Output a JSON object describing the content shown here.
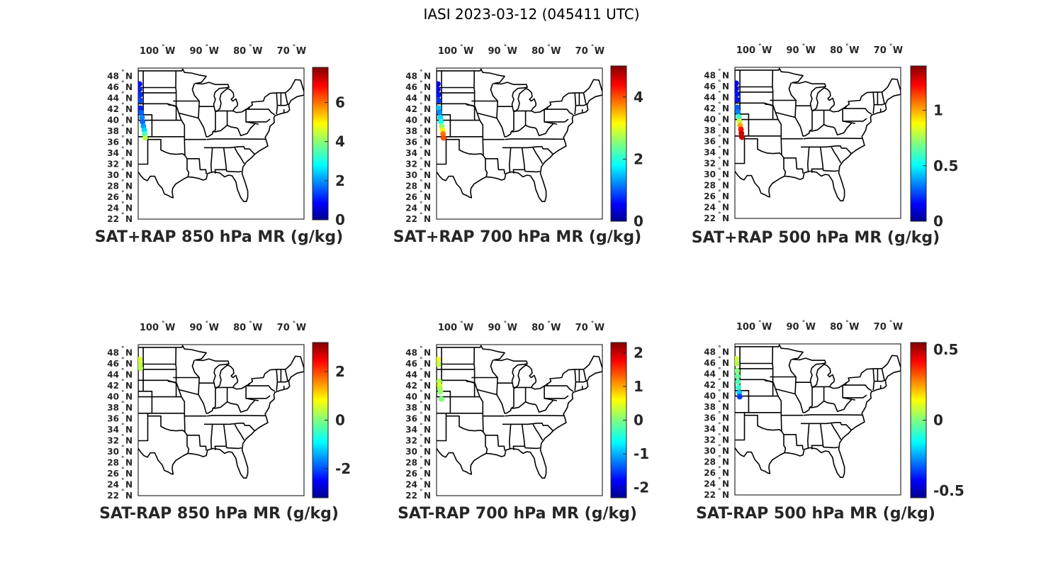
{
  "figure": {
    "title": "IASI 2023-03-12 (045411 UTC)"
  },
  "lon_labels": [
    {
      "deg": "100",
      "hemi": "W",
      "lon": -100
    },
    {
      "deg": "90",
      "hemi": "W",
      "lon": -90
    },
    {
      "deg": "80",
      "hemi": "W",
      "lon": -80
    },
    {
      "deg": "70",
      "hemi": "W",
      "lon": -70
    }
  ],
  "lat_labels": [
    {
      "deg": "48",
      "hemi": "N",
      "lat": 48
    },
    {
      "deg": "46",
      "hemi": "N",
      "lat": 46
    },
    {
      "deg": "44",
      "hemi": "N",
      "lat": 44
    },
    {
      "deg": "42",
      "hemi": "N",
      "lat": 42
    },
    {
      "deg": "40",
      "hemi": "N",
      "lat": 40
    },
    {
      "deg": "38",
      "hemi": "N",
      "lat": 38
    },
    {
      "deg": "36",
      "hemi": "N",
      "lat": 36
    },
    {
      "deg": "34",
      "hemi": "N",
      "lat": 34
    },
    {
      "deg": "32",
      "hemi": "N",
      "lat": 32
    },
    {
      "deg": "30",
      "hemi": "N",
      "lat": 30
    },
    {
      "deg": "28",
      "hemi": "N",
      "lat": 28
    },
    {
      "deg": "26",
      "hemi": "N",
      "lat": 26
    },
    {
      "deg": "24",
      "hemi": "N",
      "lat": 24
    },
    {
      "deg": "22",
      "hemi": "N",
      "lat": 22
    }
  ],
  "colormap": "jet",
  "panels": [
    {
      "title": "SAT+RAP 850 hPa MR (g/kg)",
      "colorbar": {
        "min": 0,
        "max": 7.8,
        "ticks": [
          {
            "v": 0,
            "label": "0"
          },
          {
            "v": 2,
            "label": "2"
          },
          {
            "v": 4,
            "label": "4"
          },
          {
            "v": 6,
            "label": "6"
          }
        ]
      },
      "points": [
        {
          "lon": -104.9,
          "lat": 46.6,
          "v": 1.1
        },
        {
          "lon": -104.9,
          "lat": 45.6,
          "v": 1.2
        },
        {
          "lon": -104.8,
          "lat": 44.6,
          "v": 1.3
        },
        {
          "lon": -104.7,
          "lat": 43.6,
          "v": 1.5
        },
        {
          "lon": -104.7,
          "lat": 42.2,
          "v": 1.2
        },
        {
          "lon": -104.5,
          "lat": 41.4,
          "v": 1.7
        },
        {
          "lon": -104.3,
          "lat": 40.5,
          "v": 2.0
        },
        {
          "lon": -104.2,
          "lat": 39.7,
          "v": 1.8
        },
        {
          "lon": -104.0,
          "lat": 38.9,
          "v": 2.2
        },
        {
          "lon": -103.8,
          "lat": 38.2,
          "v": 2.6
        },
        {
          "lon": -103.7,
          "lat": 37.5,
          "v": 3.4
        },
        {
          "lon": -103.6,
          "lat": 36.8,
          "v": 4.3
        }
      ]
    },
    {
      "title": "SAT+RAP 700 hPa MR (g/kg)",
      "colorbar": {
        "min": 0,
        "max": 5.0,
        "ticks": [
          {
            "v": 0,
            "label": "0"
          },
          {
            "v": 2,
            "label": "2"
          },
          {
            "v": 4,
            "label": "4"
          }
        ]
      },
      "points": [
        {
          "lon": -104.9,
          "lat": 46.6,
          "v": 0.5
        },
        {
          "lon": -104.9,
          "lat": 45.6,
          "v": 0.6
        },
        {
          "lon": -104.8,
          "lat": 44.6,
          "v": 0.7
        },
        {
          "lon": -104.7,
          "lat": 43.6,
          "v": 0.9
        },
        {
          "lon": -104.7,
          "lat": 42.2,
          "v": 1.6
        },
        {
          "lon": -104.5,
          "lat": 41.4,
          "v": 1.3
        },
        {
          "lon": -104.3,
          "lat": 40.5,
          "v": 1.7
        },
        {
          "lon": -104.2,
          "lat": 39.7,
          "v": 2.0
        },
        {
          "lon": -104.0,
          "lat": 38.9,
          "v": 2.6
        },
        {
          "lon": -103.8,
          "lat": 38.2,
          "v": 3.2
        },
        {
          "lon": -103.7,
          "lat": 37.5,
          "v": 3.8
        },
        {
          "lon": -103.6,
          "lat": 36.8,
          "v": 4.0
        }
      ]
    },
    {
      "title": "SAT+RAP 500 hPa MR (g/kg)",
      "colorbar": {
        "min": 0,
        "max": 1.4,
        "ticks": [
          {
            "v": 0,
            "label": "0"
          },
          {
            "v": 0.5,
            "label": "0.5"
          },
          {
            "v": 1,
            "label": "1"
          }
        ]
      },
      "points": [
        {
          "lon": -104.9,
          "lat": 46.6,
          "v": 0.15
        },
        {
          "lon": -104.9,
          "lat": 45.6,
          "v": 0.15
        },
        {
          "lon": -104.8,
          "lat": 44.6,
          "v": 0.2
        },
        {
          "lon": -104.7,
          "lat": 43.6,
          "v": 0.2
        },
        {
          "lon": -104.7,
          "lat": 42.2,
          "v": 0.3
        },
        {
          "lon": -104.5,
          "lat": 41.4,
          "v": 0.35
        },
        {
          "lon": -104.3,
          "lat": 40.5,
          "v": 0.6
        },
        {
          "lon": -104.2,
          "lat": 39.7,
          "v": 0.8
        },
        {
          "lon": -104.0,
          "lat": 38.9,
          "v": 1.0
        },
        {
          "lon": -103.8,
          "lat": 38.2,
          "v": 1.2
        },
        {
          "lon": -103.7,
          "lat": 37.5,
          "v": 1.3
        },
        {
          "lon": -103.6,
          "lat": 36.8,
          "v": 1.3
        }
      ]
    },
    {
      "title": "SAT-RAP 850 hPa MR (g/kg)",
      "colorbar": {
        "min": -3.2,
        "max": 3.2,
        "ticks": [
          {
            "v": -2,
            "label": "-2"
          },
          {
            "v": 0,
            "label": "0"
          },
          {
            "v": 2,
            "label": "2"
          }
        ]
      },
      "points": [
        {
          "lon": -104.9,
          "lat": 46.8,
          "v": 0.6
        },
        {
          "lon": -104.8,
          "lat": 45.9,
          "v": 0.4
        },
        {
          "lon": -104.7,
          "lat": 45.2,
          "v": 0.3
        }
      ]
    },
    {
      "title": "SAT-RAP 700 hPa MR (g/kg)",
      "colorbar": {
        "min": -2.3,
        "max": 2.3,
        "ticks": [
          {
            "v": -2,
            "label": "-2"
          },
          {
            "v": -1,
            "label": "-1"
          },
          {
            "v": 0,
            "label": "0"
          },
          {
            "v": 1,
            "label": "1"
          },
          {
            "v": 2,
            "label": "2"
          }
        ]
      },
      "points": [
        {
          "lon": -104.9,
          "lat": 46.8,
          "v": 0.5
        },
        {
          "lon": -104.8,
          "lat": 45.9,
          "v": 0.3
        },
        {
          "lon": -104.6,
          "lat": 42.8,
          "v": 0.2
        },
        {
          "lon": -104.5,
          "lat": 42.1,
          "v": 0.4
        },
        {
          "lon": -104.4,
          "lat": 41.4,
          "v": 0.2
        },
        {
          "lon": -104.3,
          "lat": 40.9,
          "v": 0.1
        },
        {
          "lon": -104.1,
          "lat": 39.6,
          "v": 0.0
        }
      ]
    },
    {
      "title": "SAT-RAP 500 hPa MR (g/kg)",
      "colorbar": {
        "min": -0.55,
        "max": 0.55,
        "ticks": [
          {
            "v": -0.5,
            "label": "-0.5"
          },
          {
            "v": 0,
            "label": "0"
          },
          {
            "v": 0.5,
            "label": "0.5"
          }
        ]
      },
      "points": [
        {
          "lon": -104.9,
          "lat": 46.8,
          "v": 0.08
        },
        {
          "lon": -104.8,
          "lat": 45.9,
          "v": 0.05
        },
        {
          "lon": -104.7,
          "lat": 44.6,
          "v": 0.0
        },
        {
          "lon": -104.6,
          "lat": 43.6,
          "v": -0.03
        },
        {
          "lon": -104.5,
          "lat": 42.6,
          "v": -0.05
        },
        {
          "lon": -104.4,
          "lat": 41.6,
          "v": -0.08
        },
        {
          "lon": -104.2,
          "lat": 40.6,
          "v": -0.2
        },
        {
          "lon": -104.1,
          "lat": 39.9,
          "v": -0.35
        }
      ]
    }
  ]
}
